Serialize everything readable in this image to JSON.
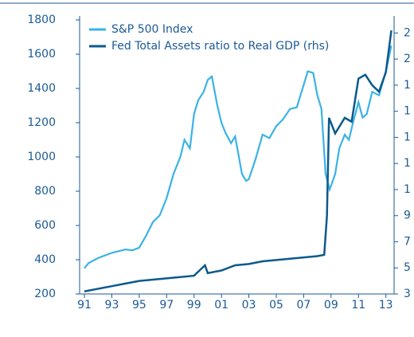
{
  "chart_data": {
    "type": "line",
    "series": [
      {
        "name": "S&P 500 Index",
        "color": "#3ab3e6",
        "x": [
          1991.0,
          1991.3,
          1992,
          1993,
          1994,
          1994.5,
          1995,
          1995.5,
          1996,
          1996.5,
          1997,
          1997.5,
          1998,
          1998.3,
          1998.7,
          1999,
          1999.3,
          1999.7,
          2000,
          2000.3,
          2000.7,
          2001,
          2001.3,
          2001.7,
          2002,
          2002.5,
          2002.8,
          2003,
          2003.5,
          2004,
          2004.5,
          2005,
          2005.5,
          2006,
          2006.5,
          2007,
          2007.3,
          2007.7,
          2008,
          2008.3,
          2008.6,
          2008.9,
          2009.3,
          2009.6,
          2010,
          2010.3,
          2010.6,
          2011,
          2011.3,
          2011.6,
          2012,
          2012.5,
          2013,
          2013.4
        ],
        "values": [
          350,
          380,
          410,
          440,
          460,
          455,
          470,
          540,
          620,
          660,
          760,
          900,
          1000,
          1100,
          1050,
          1250,
          1330,
          1380,
          1450,
          1470,
          1300,
          1200,
          1140,
          1080,
          1120,
          900,
          860,
          870,
          990,
          1130,
          1110,
          1180,
          1220,
          1280,
          1290,
          1420,
          1500,
          1490,
          1360,
          1280,
          900,
          810,
          900,
          1050,
          1130,
          1100,
          1200,
          1320,
          1230,
          1250,
          1380,
          1360,
          1500,
          1650
        ]
      },
      {
        "name": "Fed Total Assets ratio to Real GDP (rhs)",
        "color": "#0b5a8c",
        "axis": "y2",
        "x": [
          1991,
          1992,
          1993,
          1994,
          1995,
          1996,
          1997,
          1998,
          1999,
          1999.8,
          2000,
          2001,
          2002,
          2003,
          2004,
          2005,
          2006,
          2007,
          2008,
          2008.5,
          2008.7,
          2008.85,
          2009.3,
          2010,
          2010.5,
          2011,
          2011.5,
          2012,
          2012.5,
          2013,
          2013.4
        ],
        "values": [
          3.2,
          3.4,
          3.6,
          3.8,
          4.0,
          4.1,
          4.2,
          4.3,
          4.4,
          5.2,
          4.6,
          4.8,
          5.2,
          5.3,
          5.5,
          5.6,
          5.7,
          5.8,
          5.9,
          6,
          9,
          16.5,
          15.3,
          16.5,
          16.2,
          19.5,
          19.8,
          19,
          18.5,
          20,
          23.2
        ]
      }
    ],
    "xlim": [
      1990.65,
      2013.6
    ],
    "xticks": [
      {
        "value": 1991,
        "label": "91"
      },
      {
        "value": 1993,
        "label": "93"
      },
      {
        "value": 1995,
        "label": "95"
      },
      {
        "value": 1997,
        "label": "97"
      },
      {
        "value": 1999,
        "label": "99"
      },
      {
        "value": 2001,
        "label": "01"
      },
      {
        "value": 2003,
        "label": "03"
      },
      {
        "value": 2005,
        "label": "05"
      },
      {
        "value": 2007,
        "label": "07"
      },
      {
        "value": 2009,
        "label": "09"
      },
      {
        "value": 2011,
        "label": "11"
      },
      {
        "value": 2013,
        "label": "13"
      }
    ],
    "ylim": [
      200,
      1800
    ],
    "yticks": [
      200,
      400,
      600,
      800,
      1000,
      1200,
      1400,
      1600,
      1800
    ],
    "y2lim": [
      3,
      24
    ],
    "y2ticks": [
      3,
      5,
      7,
      9,
      {
        "value": 11,
        "label": "1"
      },
      {
        "value": 13,
        "label": "1"
      },
      {
        "value": 15,
        "label": "1"
      },
      {
        "value": 17,
        "label": "1"
      },
      {
        "value": 19,
        "label": "1"
      },
      {
        "value": 21,
        "label": "2"
      },
      {
        "value": 23,
        "label": "2"
      }
    ],
    "legend": "upper left"
  }
}
